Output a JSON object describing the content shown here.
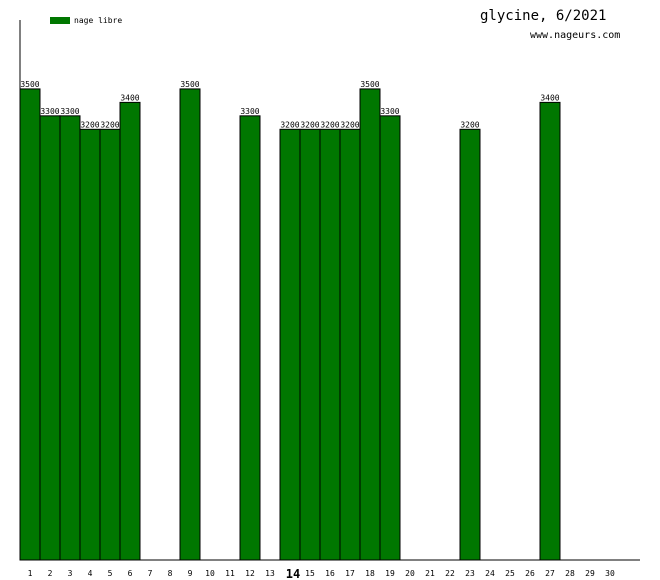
{
  "chart_data": {
    "type": "bar",
    "title": "glycine, 6/2021",
    "subtitle": "www.nageurs.com",
    "xlabel": "",
    "ylabel": "",
    "ylim": [
      0,
      3700
    ],
    "categories": [
      "1",
      "2",
      "3",
      "4",
      "5",
      "6",
      "7",
      "8",
      "9",
      "10",
      "11",
      "12",
      "13",
      "14",
      "15",
      "16",
      "17",
      "18",
      "19",
      "20",
      "21",
      "22",
      "23",
      "24",
      "25",
      "26",
      "27",
      "28",
      "29",
      "30"
    ],
    "highlighted_category": "14",
    "series": [
      {
        "name": "nage libre",
        "color": "#007700",
        "values": [
          3500,
          3300,
          3300,
          3200,
          3200,
          3400,
          null,
          null,
          3500,
          null,
          null,
          3300,
          null,
          3200,
          3200,
          3200,
          3200,
          3500,
          3300,
          null,
          null,
          null,
          3200,
          null,
          null,
          null,
          3400,
          null,
          null,
          null
        ]
      }
    ],
    "legend": "top-left",
    "grid": false
  }
}
